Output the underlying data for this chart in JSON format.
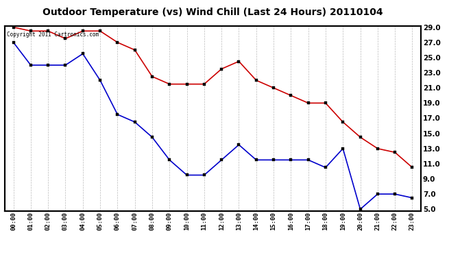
{
  "title": "Outdoor Temperature (vs) Wind Chill (Last 24 Hours) 20110104",
  "copyright_text": "Copyright 2011 Cartronics.com",
  "x_labels": [
    "00:00",
    "01:00",
    "02:00",
    "03:00",
    "04:00",
    "05:00",
    "06:00",
    "07:00",
    "08:00",
    "09:00",
    "10:00",
    "11:00",
    "12:00",
    "13:00",
    "14:00",
    "15:00",
    "16:00",
    "17:00",
    "18:00",
    "19:00",
    "20:00",
    "21:00",
    "22:00",
    "23:00"
  ],
  "temp_red": [
    29.0,
    28.5,
    28.5,
    27.5,
    28.5,
    28.5,
    27.0,
    26.0,
    22.5,
    21.5,
    21.5,
    21.5,
    23.5,
    24.5,
    22.0,
    21.0,
    20.0,
    19.0,
    19.0,
    16.5,
    14.5,
    13.0,
    12.5,
    10.5
  ],
  "wind_chill_blue": [
    27.0,
    24.0,
    24.0,
    24.0,
    25.5,
    22.0,
    17.5,
    16.5,
    14.5,
    11.5,
    9.5,
    9.5,
    11.5,
    13.5,
    11.5,
    11.5,
    11.5,
    11.5,
    10.5,
    13.0,
    5.0,
    7.0,
    7.0,
    6.5
  ],
  "y_min": 5.0,
  "y_max": 29.0,
  "y_ticks": [
    5.0,
    7.0,
    9.0,
    11.0,
    13.0,
    15.0,
    17.0,
    19.0,
    21.0,
    23.0,
    25.0,
    27.0,
    29.0
  ],
  "red_color": "#cc0000",
  "blue_color": "#0000cc",
  "background_color": "#ffffff",
  "grid_color": "#bbbbbb",
  "title_fontsize": 10,
  "marker_size": 3,
  "linewidth": 1.2
}
